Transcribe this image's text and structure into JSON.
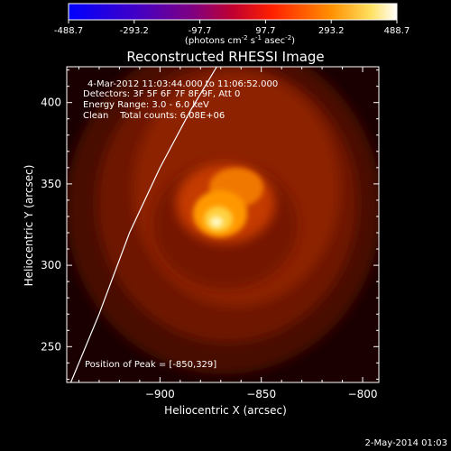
{
  "colorbar": {
    "ticks": [
      "-488.7",
      "-293.2",
      "-97.7",
      "97.7",
      "293.2",
      "488.7"
    ],
    "unit_pre": "(photons cm",
    "unit_exp1": "-2",
    "unit_mid": " s",
    "unit_exp2": "-1",
    "unit_mid2": " asec",
    "unit_exp3": "-2",
    "unit_post": ")",
    "min": -488.7,
    "max": 488.7
  },
  "footer": {
    "timestamp": "2-May-2014 01:03"
  },
  "chart_data": {
    "type": "heatmap",
    "title": "Reconstructed RHESSI Image",
    "xlabel": "Heliocentric X (arcsec)",
    "ylabel": "Heliocentric Y (arcsec)",
    "xlim": [
      -946,
      -792
    ],
    "ylim": [
      228,
      422
    ],
    "xticks": [
      -900,
      -850,
      -800
    ],
    "xtick_labels": [
      "−900",
      "−850",
      "−800"
    ],
    "yticks": [
      250,
      300,
      350,
      400
    ],
    "ytick_labels": [
      "250",
      "300",
      "350",
      "400"
    ],
    "colormap": "hot",
    "info_lines": [
      "4-Mar-2012 11:03:44.000 to 11:06:52.000",
      "Detectors: 3F 5F 6F 7F 8F 9F, Att 0",
      "Energy Range: 3.0 - 6.0 keV",
      "Clean    Total counts: 6.08E+06"
    ],
    "peak_label": "Position of Peak = [-850,329]",
    "peak": [
      -850,
      329
    ],
    "limb": [
      [
        -944,
        228
      ],
      [
        -930,
        270
      ],
      [
        -915,
        320
      ],
      [
        -900,
        360
      ],
      [
        -885,
        395
      ],
      [
        -872,
        422
      ]
    ]
  }
}
